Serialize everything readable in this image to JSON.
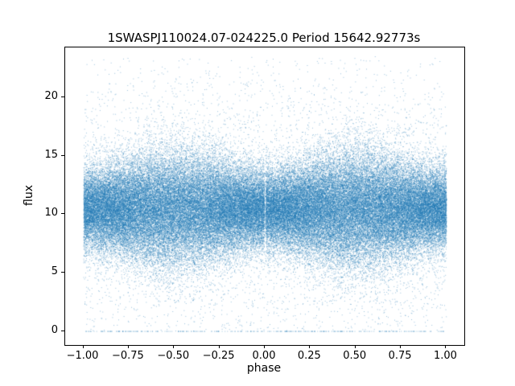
{
  "chart_data": {
    "type": "scatter",
    "title": "1SWASPJ110024.07-024225.0 Period 15642.92773s",
    "xlabel": "phase",
    "ylabel": "flux",
    "xlim": [
      -1.1,
      1.1
    ],
    "ylim": [
      -1.2,
      24.3
    ],
    "x_ticks": [
      -1.0,
      -0.75,
      -0.5,
      -0.25,
      0.0,
      0.25,
      0.5,
      0.75,
      1.0
    ],
    "x_tick_labels": [
      "−1.00",
      "−0.75",
      "−0.50",
      "−0.25",
      "0.00",
      "0.25",
      "0.50",
      "0.75",
      "1.00"
    ],
    "y_ticks": [
      0,
      5,
      10,
      15,
      20
    ],
    "y_tick_labels": [
      "0",
      "5",
      "10",
      "15",
      "20"
    ],
    "grid": false,
    "legend": "none",
    "point_color": "#1f77b4",
    "description": "Phase-folded light curve: very dense scatter band of flux values centered near flux 10.5, core band roughly flux 7 to 15, sparse outliers up to ~23 and down to 0, with clipped points forming a dashed row at flux 0; band slightly wider near phase ±0.5 and slightly pinched with a faint vertical gap at phase 0; points span phase −1.00 to 1.00.",
    "scatter_model": {
      "n_points": 100000,
      "seed": 42,
      "x_min": -1.0,
      "x_max": 1.0,
      "mean_flux": 10.5,
      "std_base": 2.1,
      "std_mod": 0.4,
      "outlier_frac": 0.06,
      "outlier_std": 6.5,
      "clip_low": 0,
      "reject_above": 23.6,
      "gap_halfwidth": 0.004,
      "gap_skip_prob": 0.75,
      "alpha": 0.45,
      "point_size": 1
    }
  }
}
